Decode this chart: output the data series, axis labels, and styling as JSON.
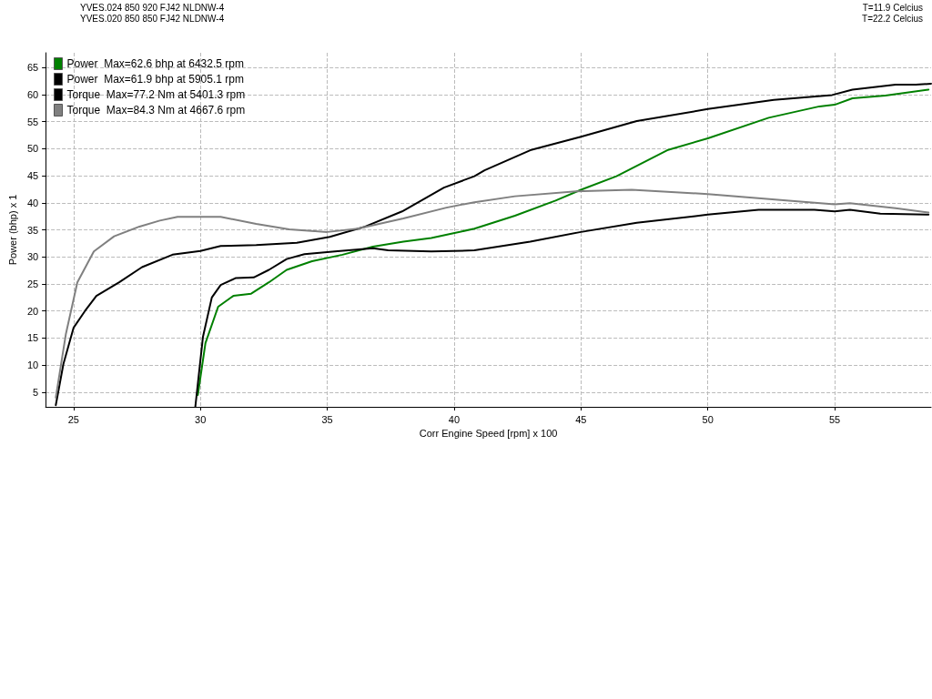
{
  "chart_data": {
    "type": "line",
    "xlabel": "Corr Engine Speed [rpm] x 100",
    "ylabel": "Power (bhp) x 1",
    "annotations": [
      "YVES.024 850 920 FJ42 NLDNW-4",
      "YVES.020 850 850 FJ42 NLDNW-4",
      "T=11.9 Celcius",
      "T=22.2 Celcius"
    ],
    "xlim": [
      23.9,
      58.8
    ],
    "xticks": [
      25,
      30,
      35,
      40,
      45,
      50,
      55
    ],
    "ylim": [
      2.3,
      67.7
    ],
    "yticks": [
      5,
      10,
      15,
      20,
      25,
      30,
      35,
      40,
      45,
      50,
      55,
      60,
      65
    ],
    "grid": true,
    "legend": "top left",
    "marker": "none",
    "line_style": "solid",
    "series": [
      {
        "name": "Power  Max=62.6 bhp at 6432.5 rpm",
        "color": "#008000",
        "x": [
          29.9,
          30.2,
          30.7,
          31.3,
          32.0,
          32.7,
          33.4,
          34.4,
          35.6,
          36.8,
          38.0,
          39.1,
          40.8,
          42.4,
          44.0,
          45.0,
          46.4,
          48.4,
          50.0,
          52.4,
          54.4,
          55.0,
          55.7,
          57.0,
          58.7
        ],
        "values": [
          4.5,
          14.1,
          20.8,
          22.8,
          23.2,
          25.3,
          27.6,
          29.2,
          30.4,
          31.9,
          32.8,
          33.5,
          35.2,
          37.6,
          40.4,
          42.4,
          44.9,
          49.7,
          51.9,
          55.7,
          57.8,
          58.1,
          59.3,
          59.8,
          60.9
        ]
      },
      {
        "name": "Power  Max=61.9 bhp at 5905.1 rpm",
        "color": "#000000",
        "x": [
          24.3,
          24.6,
          25.0,
          25.45,
          25.9,
          26.8,
          27.7,
          28.9,
          30.0,
          30.8,
          32.2,
          33.8,
          35.1,
          36.5,
          37.95,
          39.6,
          40.8,
          41.2,
          43.0,
          45.0,
          47.2,
          50.0,
          52.6,
          54.9,
          55.7,
          57.4,
          58.2,
          58.8
        ],
        "values": [
          2.6,
          10.2,
          16.9,
          20.0,
          22.8,
          25.3,
          28.1,
          30.4,
          31.1,
          32.0,
          32.2,
          32.6,
          33.7,
          35.6,
          38.4,
          42.8,
          44.9,
          46.0,
          49.7,
          52.2,
          55.1,
          57.3,
          59.0,
          59.9,
          60.9,
          61.8,
          61.8,
          62.0
        ]
      },
      {
        "name": "Torque  Max=77.2 Nm at 5401.3 rpm",
        "color": "#000000",
        "x": [
          29.8,
          30.1,
          30.45,
          30.8,
          31.4,
          32.1,
          32.7,
          33.4,
          34.1,
          35.3,
          36.8,
          37.4,
          39.1,
          40.8,
          43.0,
          45.0,
          47.2,
          50.0,
          52.0,
          54.2,
          55.0,
          55.6,
          56.8,
          58.7
        ],
        "values": [
          2.3,
          15.2,
          22.5,
          24.8,
          26.1,
          26.2,
          27.6,
          29.6,
          30.5,
          31.0,
          31.6,
          31.2,
          31.0,
          31.2,
          32.8,
          34.6,
          36.3,
          37.8,
          38.7,
          38.7,
          38.4,
          38.7,
          38.0,
          37.8
        ]
      },
      {
        "name": "Torque  Max=84.3 Nm at 4667.6 rpm",
        "color": "#808080",
        "x": [
          24.3,
          24.7,
          25.15,
          25.8,
          26.6,
          27.6,
          28.4,
          29.1,
          30.8,
          32.2,
          33.5,
          35.0,
          36.2,
          38.0,
          39.7,
          40.8,
          42.4,
          44.8,
          47.0,
          50.0,
          53.2,
          55.0,
          55.6,
          57.4,
          58.7
        ],
        "values": [
          4.0,
          15.8,
          25.3,
          31.0,
          33.8,
          35.6,
          36.7,
          37.4,
          37.4,
          36.1,
          35.1,
          34.6,
          35.2,
          37.1,
          39.1,
          40.1,
          41.2,
          42.1,
          42.4,
          41.6,
          40.4,
          39.7,
          39.9,
          39.0,
          38.2
        ]
      }
    ]
  }
}
